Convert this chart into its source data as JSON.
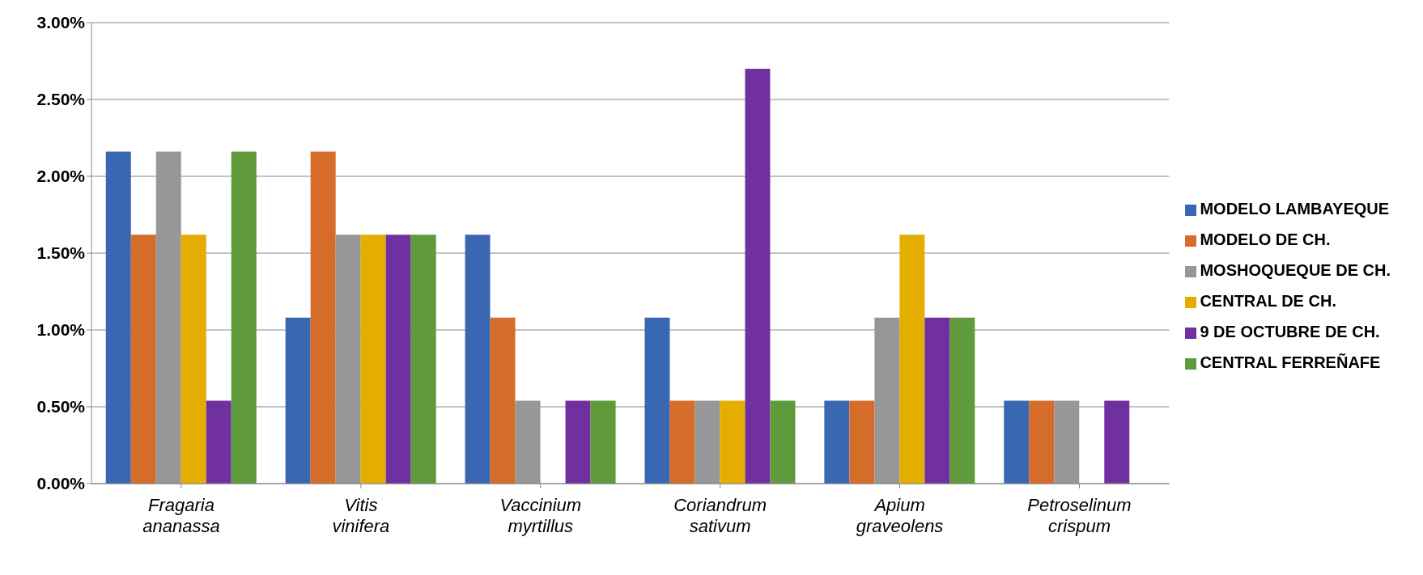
{
  "chart_data": {
    "type": "bar",
    "categories": [
      "Fragaria ananassa",
      "Vitis vinifera",
      "Vaccinium myrtillus",
      "Coriandrum sativum",
      "Apium graveolens",
      "Petroselinum crispum"
    ],
    "series": [
      {
        "name": "MODELO LAMBAYEQUE",
        "color": "#3a67b1",
        "values": [
          2.16,
          1.08,
          1.62,
          1.08,
          0.54,
          0.54
        ]
      },
      {
        "name": "MODELO DE CH.",
        "color": "#d66c2a",
        "values": [
          1.62,
          2.16,
          1.08,
          0.54,
          0.54,
          0.54
        ]
      },
      {
        "name": "MOSHOQUEQUE DE CH.",
        "color": "#979797",
        "values": [
          2.16,
          1.62,
          0.54,
          0.54,
          1.08,
          0.54
        ]
      },
      {
        "name": "CENTRAL DE CH.",
        "color": "#e4ad00",
        "values": [
          1.62,
          1.62,
          0,
          0.54,
          1.62,
          0
        ]
      },
      {
        "name": "9 DE OCTUBRE DE CH.",
        "color": "#7030a0",
        "values": [
          0.54,
          1.62,
          0.54,
          2.7,
          1.08,
          0.54
        ]
      },
      {
        "name": "CENTRAL FERREÑAFE",
        "color": "#5f9a3b",
        "values": [
          2.16,
          1.62,
          0.54,
          0.54,
          1.08,
          0
        ]
      }
    ],
    "ylim": [
      0,
      3
    ],
    "yticks": [
      {
        "value": 0,
        "label": "0.00%"
      },
      {
        "value": 0.5,
        "label": "0.50%"
      },
      {
        "value": 1,
        "label": "1.00%"
      },
      {
        "value": 1.5,
        "label": "1.50%"
      },
      {
        "value": 2,
        "label": "2.00%"
      },
      {
        "value": 2.5,
        "label": "2.50%"
      },
      {
        "value": 3,
        "label": "3.00%"
      }
    ],
    "grid": "y",
    "legend": "right"
  }
}
